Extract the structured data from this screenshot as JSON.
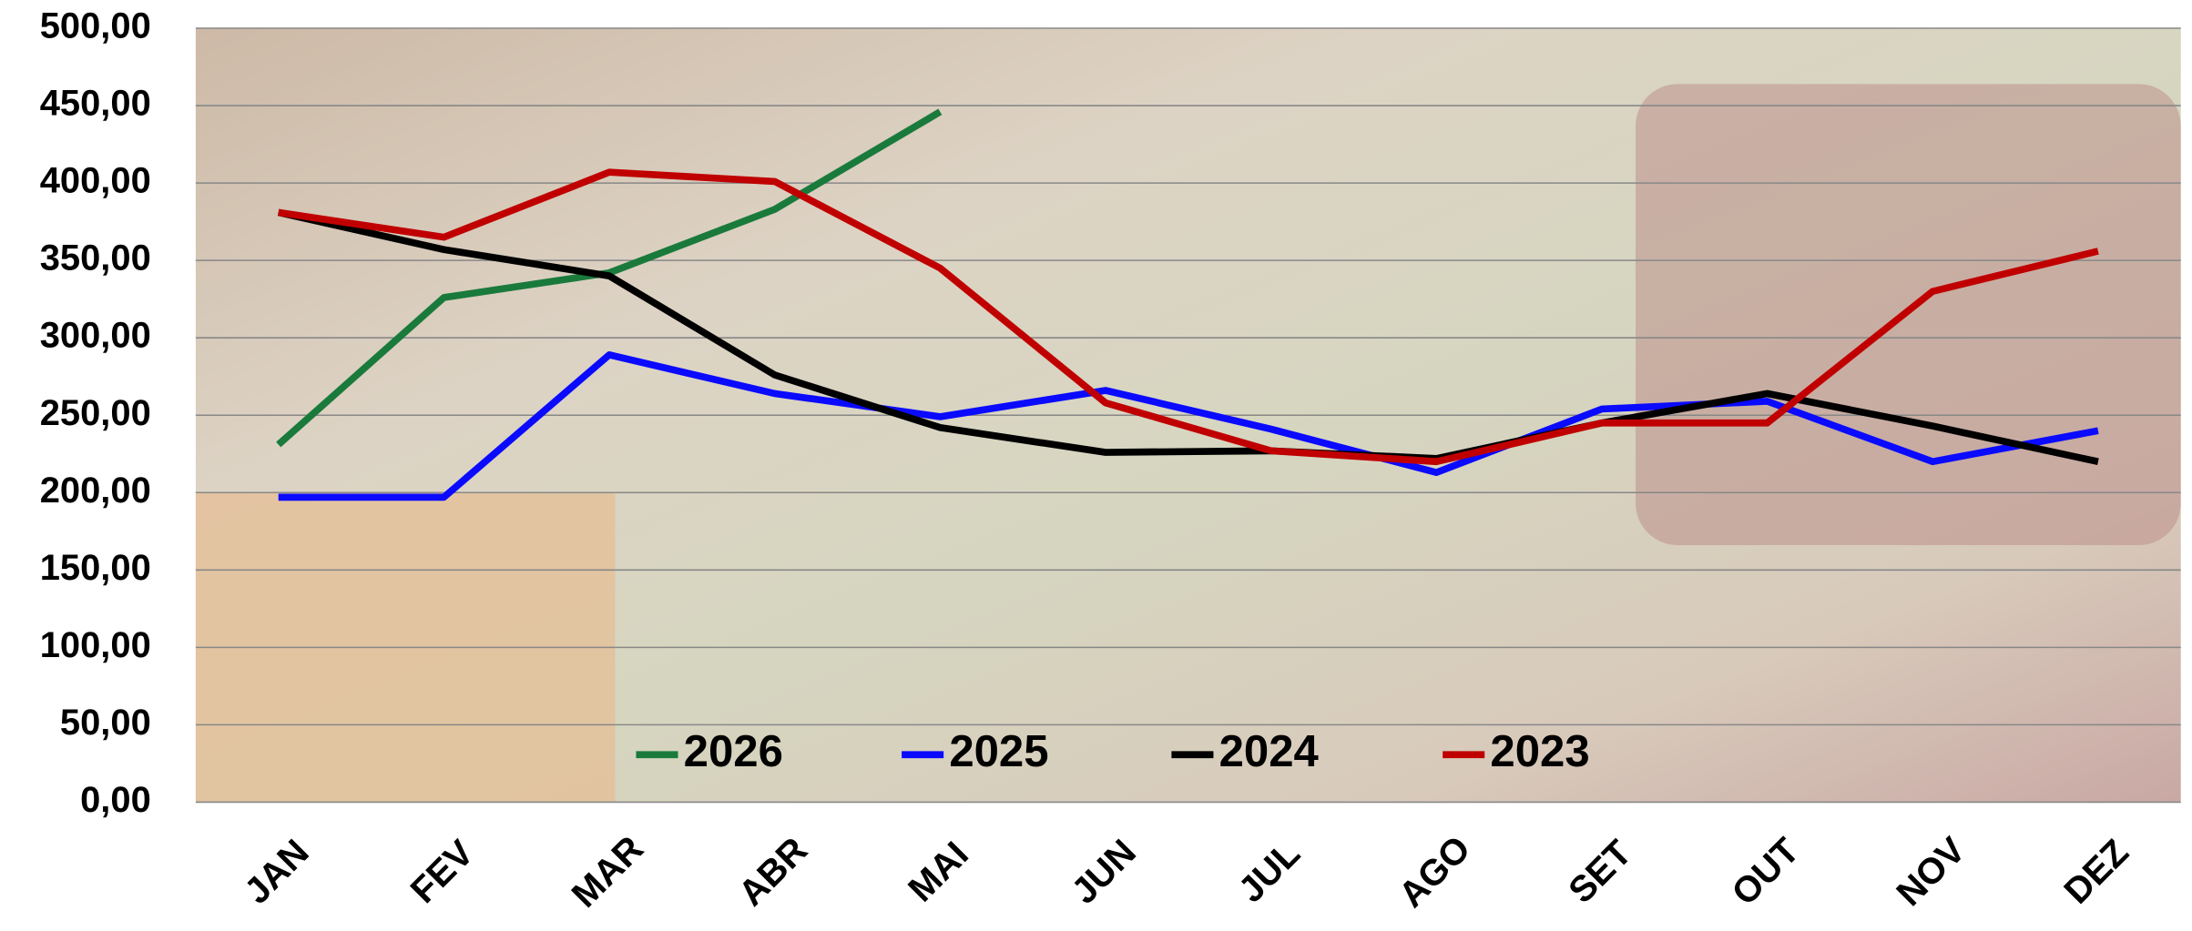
{
  "chart_data": {
    "type": "line",
    "categories": [
      "JAN",
      "FEV",
      "MAR",
      "ABR",
      "MAI",
      "JUN",
      "JUL",
      "AGO",
      "SET",
      "OUT",
      "NOV",
      "DEZ"
    ],
    "series": [
      {
        "name": "2026",
        "color": "#1a7a3c",
        "values": [
          231,
          326,
          342,
          383,
          446,
          null,
          null,
          null,
          null,
          null,
          null,
          null
        ]
      },
      {
        "name": "2025",
        "color": "#0a0aff",
        "values": [
          197,
          197,
          289,
          264,
          249,
          266,
          241,
          213,
          254,
          259,
          220,
          240
        ]
      },
      {
        "name": "2024",
        "color": "#000000",
        "values": [
          381,
          357,
          340,
          276,
          242,
          226,
          227,
          222,
          245,
          264,
          243,
          220
        ]
      },
      {
        "name": "2023",
        "color": "#c00000",
        "values": [
          381,
          365,
          407,
          401,
          345,
          258,
          227,
          220,
          245,
          245,
          330,
          356
        ]
      }
    ],
    "ylim": [
      0,
      500
    ],
    "yticks": [
      {
        "value": 0,
        "label": "0,00"
      },
      {
        "value": 50,
        "label": "50,00"
      },
      {
        "value": 100,
        "label": "100,00"
      },
      {
        "value": 150,
        "label": "150,00"
      },
      {
        "value": 200,
        "label": "200,00"
      },
      {
        "value": 250,
        "label": "250,00"
      },
      {
        "value": 300,
        "label": "300,00"
      },
      {
        "value": 350,
        "label": "350,00"
      },
      {
        "value": 400,
        "label": "400,00"
      },
      {
        "value": 450,
        "label": "450,00"
      },
      {
        "value": 500,
        "label": "500,00"
      }
    ],
    "grid": true,
    "legend": "bottom"
  }
}
